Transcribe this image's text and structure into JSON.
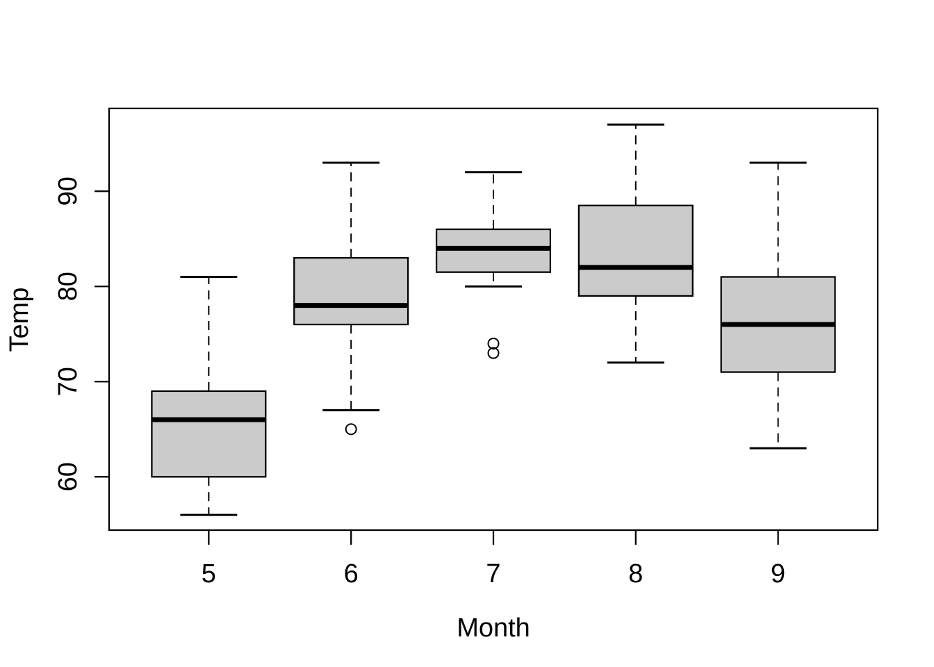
{
  "chart_data": {
    "type": "boxplot",
    "title": "",
    "xlabel": "Month",
    "ylabel": "Temp",
    "categories": [
      "5",
      "6",
      "7",
      "8",
      "9"
    ],
    "x_positions": [
      1,
      2,
      3,
      4,
      5
    ],
    "xlim": [
      0.3,
      5.7
    ],
    "ylim": [
      54.4,
      98.7
    ],
    "y_ticks": [
      60,
      70,
      80,
      90
    ],
    "grid": false,
    "legend": false,
    "series": [
      {
        "category": "5",
        "whisker_low": 56,
        "q1": 60,
        "median": 66,
        "q3": 69,
        "whisker_high": 81,
        "outliers": []
      },
      {
        "category": "6",
        "whisker_low": 67,
        "q1": 76,
        "median": 78,
        "q3": 83,
        "whisker_high": 93,
        "outliers": [
          65
        ]
      },
      {
        "category": "7",
        "whisker_low": 80,
        "q1": 81.5,
        "median": 84,
        "q3": 86,
        "whisker_high": 92,
        "outliers": [
          73,
          74
        ]
      },
      {
        "category": "8",
        "whisker_low": 72,
        "q1": 79,
        "median": 82,
        "q3": 88.5,
        "whisker_high": 97,
        "outliers": []
      },
      {
        "category": "9",
        "whisker_low": 63,
        "q1": 71,
        "median": 76,
        "q3": 81,
        "whisker_high": 93,
        "outliers": []
      }
    ],
    "colors": {
      "box_fill": "#cbcbcb",
      "stroke": "#000000",
      "background": "#ffffff"
    }
  }
}
